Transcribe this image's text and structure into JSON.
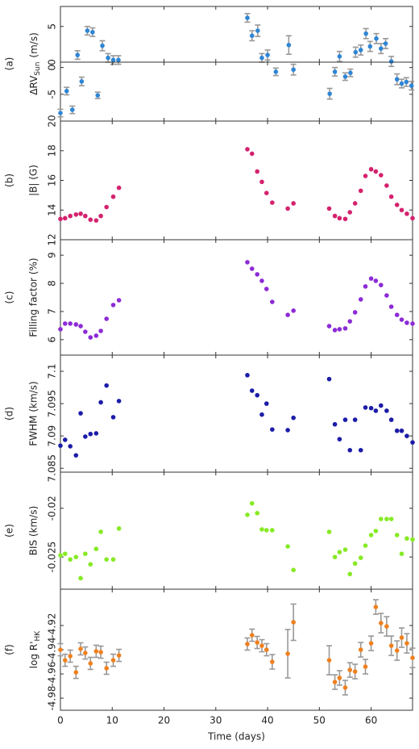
{
  "chart_data": [
    {
      "type": "errorbar",
      "panel": "(a)",
      "ylabel": {
        "text": "ΔRV",
        "sub": "Sun",
        "unit": "(m/s)"
      },
      "color": "#2e86d6",
      "x": [
        3.3,
        5.2,
        6.2,
        8.1,
        9.2,
        10.2,
        11.2,
        36.1,
        37,
        38.1,
        38.9,
        40,
        44.1,
        53.9,
        57,
        58,
        59,
        59.8,
        61,
        61.9,
        62.8,
        63.9
      ],
      "values": [
        1.0,
        4.4,
        4.2,
        2.3,
        0.6,
        0.3,
        0.3,
        6.2,
        3.7,
        4.4,
        0.6,
        1.0,
        2.4,
        0.8,
        1.4,
        1.7,
        4.0,
        2.2,
        3.3,
        1.9,
        2.6,
        0.1
      ],
      "errors": [
        0.6,
        0.6,
        0.6,
        0.7,
        0.6,
        0.6,
        0.6,
        0.6,
        0.7,
        0.8,
        0.6,
        0.7,
        1.3,
        0.7,
        0.7,
        0.7,
        0.7,
        0.7,
        0.7,
        0.7,
        0.7,
        0.7
      ],
      "xlim": [
        0,
        68
      ],
      "xticks": [
        0,
        10,
        20,
        30,
        40,
        50,
        60
      ],
      "ylim": [
        0,
        7.8
      ],
      "yticks": [
        0,
        5
      ]
    },
    {
      "type": "errorbar",
      "color": "#2e86d6",
      "x": [
        0,
        1.2,
        2.3,
        4.1,
        7.2,
        41.6,
        45,
        52,
        53,
        55,
        56,
        65,
        65.9,
        66.8,
        67.8
      ],
      "values": [
        -8.5,
        -4.4,
        -7.9,
        -2.6,
        -5.2,
        -0.8,
        -0.4,
        -4.9,
        -0.8,
        -1.7,
        -1.0,
        -2.2,
        -3.0,
        -2.7,
        -3.4
      ],
      "errors": [
        0.7,
        0.7,
        0.7,
        0.8,
        0.6,
        0.7,
        1.0,
        1.0,
        0.8,
        0.7,
        0.7,
        1.0,
        0.8,
        0.8,
        0.8
      ],
      "xlim": [
        0,
        68
      ],
      "xticks": [
        0,
        10,
        20,
        30,
        40,
        50,
        60
      ],
      "ylim": [
        -10,
        1
      ],
      "yticks": [
        -5,
        0
      ]
    },
    {
      "type": "scatter",
      "panel": "(b)",
      "ylabel": "|B| (G)",
      "color": "#d4226e",
      "x": [
        0,
        0.9,
        1.9,
        3,
        3.9,
        4.8,
        5.8,
        6.9,
        7.8,
        8.9,
        10.2,
        11.3,
        36.1,
        37,
        38,
        38.9,
        39.8,
        40.9,
        43.9,
        45,
        51.9,
        53,
        53.9,
        55,
        55.9,
        56.9,
        58,
        58.9,
        60,
        60.9,
        61.9,
        63,
        63.9,
        65,
        65.9,
        66.9,
        68
      ],
      "values": [
        13.4,
        13.45,
        13.6,
        13.7,
        13.75,
        13.6,
        13.35,
        13.3,
        13.6,
        14.2,
        14.9,
        15.5,
        18.1,
        17.8,
        16.6,
        15.9,
        15.15,
        14.5,
        14.1,
        14.45,
        14.1,
        13.6,
        13.45,
        13.4,
        13.85,
        14.45,
        15.3,
        16.3,
        16.75,
        16.6,
        16.35,
        15.65,
        14.9,
        14.35,
        14.0,
        13.75,
        13.45
      ],
      "xlim": [
        0,
        68
      ],
      "xticks": [
        0,
        10,
        20,
        30,
        40,
        50,
        60
      ],
      "ylim": [
        12,
        20
      ],
      "yticks": [
        12,
        14,
        16,
        18,
        20
      ]
    },
    {
      "type": "scatter",
      "panel": "(c)",
      "ylabel": "Filling factor (%)",
      "color": "#8c2bd6",
      "x": [
        0,
        0.9,
        1.9,
        3,
        3.9,
        4.8,
        5.8,
        6.9,
        7.8,
        8.9,
        10.2,
        11.3,
        36.1,
        37,
        38,
        38.9,
        39.8,
        40.9,
        43.9,
        45,
        51.9,
        53,
        53.9,
        55,
        55.9,
        56.9,
        58,
        58.9,
        60,
        60.9,
        61.9,
        63,
        63.9,
        65,
        65.9,
        66.9,
        68
      ],
      "values": [
        6.37,
        6.57,
        6.57,
        6.54,
        6.48,
        6.28,
        6.08,
        6.14,
        6.31,
        6.74,
        7.23,
        7.4,
        8.75,
        8.52,
        8.32,
        8.09,
        7.8,
        7.34,
        6.88,
        7.03,
        6.48,
        6.34,
        6.37,
        6.4,
        6.65,
        6.97,
        7.43,
        7.89,
        8.17,
        8.09,
        7.94,
        7.57,
        7.17,
        6.88,
        6.71,
        6.6,
        6.57
      ],
      "xlim": [
        0,
        68
      ],
      "xticks": [
        0,
        10,
        20,
        30,
        40,
        50,
        60
      ],
      "ylim": [
        5.45,
        9.55
      ],
      "yticks": [
        6,
        7,
        8,
        9
      ]
    },
    {
      "type": "scatter",
      "panel": "(d)",
      "ylabel": "FWHM (km/s)",
      "color": "#1c1ca8",
      "x": [
        0,
        0.9,
        1.9,
        3,
        3.9,
        4.8,
        5.8,
        6.9,
        7.8,
        8.9,
        10.2,
        11.3,
        36.1,
        37,
        38,
        38.9,
        39.8,
        40.9,
        43.9,
        45,
        51.9,
        53,
        53.9,
        55,
        55.9,
        56.9,
        58,
        58.9,
        60,
        60.9,
        61.9,
        63,
        63.9,
        65,
        65.9,
        66.9,
        68
      ],
      "values": [
        7.0885,
        7.0894,
        7.0884,
        7.087,
        7.0935,
        7.0899,
        7.0903,
        7.0904,
        7.0952,
        7.0978,
        7.0929,
        7.0954,
        7.0994,
        7.097,
        7.0963,
        7.0933,
        7.095,
        7.091,
        7.0909,
        7.0928,
        7.0988,
        7.0918,
        7.0895,
        7.0925,
        7.0878,
        7.0925,
        7.0878,
        7.0944,
        7.0943,
        7.0939,
        7.0947,
        7.0939,
        7.0925,
        7.0908,
        7.0908,
        7.09,
        7.089
      ],
      "xlim": [
        0,
        68
      ],
      "xticks": [
        0,
        10,
        20,
        30,
        40,
        50,
        60
      ],
      "ylim": [
        7.0844,
        7.1025
      ],
      "yticks": [
        7.085,
        7.09,
        7.095,
        7.1
      ]
    },
    {
      "type": "scatter",
      "panel": "(e)",
      "ylabel": "BIS (km/s)",
      "color": "#86ea24",
      "x": [
        0,
        0.9,
        1.9,
        3,
        3.9,
        4.8,
        5.8,
        6.9,
        7.8,
        8.9,
        10.2,
        11.3,
        36.1,
        37,
        38,
        38.9,
        39.8,
        40.9,
        43.9,
        45,
        51.9,
        53,
        53.9,
        55,
        55.9,
        56.9,
        58,
        58.9,
        60,
        60.9,
        61.9,
        63,
        63.9,
        65,
        65.9,
        66.9,
        68
      ],
      "values": [
        -0.02483,
        -0.02467,
        -0.02525,
        -0.025,
        -0.02717,
        -0.02467,
        -0.02575,
        -0.02417,
        -0.02242,
        -0.02525,
        -0.02525,
        -0.02208,
        -0.02067,
        -0.0195,
        -0.0205,
        -0.02217,
        -0.02225,
        -0.02225,
        -0.02392,
        -0.02633,
        -0.02242,
        -0.025,
        -0.0245,
        -0.02425,
        -0.02675,
        -0.02567,
        -0.02508,
        -0.02383,
        -0.02275,
        -0.02233,
        -0.0211,
        -0.0211,
        -0.0211,
        -0.02275,
        -0.02467,
        -0.0231,
        -0.0232
      ],
      "xlim": [
        0,
        68
      ],
      "xticks": [
        0,
        10,
        20,
        30,
        40,
        50,
        60
      ],
      "ylim": [
        -0.0283,
        -0.0163
      ],
      "yticks": [
        -0.025,
        -0.02
      ]
    },
    {
      "type": "errorbar",
      "panel": "(f)",
      "ylabel": {
        "text": "log R'",
        "sub": "HK"
      },
      "xlabel": "Time (days)",
      "color": "#f0801e",
      "x": [
        0,
        0.9,
        1.9,
        3,
        3.9,
        4.8,
        5.8,
        6.9,
        7.8,
        8.9,
        10.2,
        11.3,
        36.1,
        37,
        38,
        38.9,
        39.8,
        40.9,
        43.9,
        45,
        51.9,
        53,
        53.9,
        55,
        55.9,
        56.9,
        58,
        58.9,
        60,
        60.9,
        61.9,
        63,
        63.9,
        65,
        65.9,
        66.9,
        68
      ],
      "values": [
        -4.94,
        -4.9487,
        -4.9453,
        -4.9587,
        -4.9393,
        -4.9427,
        -4.9513,
        -4.9413,
        -4.942,
        -4.9553,
        -4.9487,
        -4.9447,
        -4.9353,
        -4.928,
        -4.934,
        -4.9367,
        -4.94,
        -4.95,
        -4.9433,
        -4.9173,
        -4.9487,
        -4.9667,
        -4.9633,
        -4.9713,
        -4.9567,
        -4.958,
        -4.94,
        -4.954,
        -4.9347,
        -4.9047,
        -4.918,
        -4.9207,
        -4.9367,
        -4.9407,
        -4.93,
        -4.9347,
        -4.9467
      ],
      "errors": [
        0.005,
        0.005,
        0.005,
        0.005,
        0.005,
        0.005,
        0.005,
        0.005,
        0.005,
        0.005,
        0.005,
        0.005,
        0.005,
        0.005,
        0.005,
        0.005,
        0.005,
        0.006,
        0.02,
        0.015,
        0.012,
        0.006,
        0.006,
        0.006,
        0.006,
        0.006,
        0.006,
        0.006,
        0.006,
        0.006,
        0.008,
        0.008,
        0.008,
        0.008,
        0.008,
        0.008,
        0.008
      ],
      "xlim": [
        0,
        68
      ],
      "xticks": [
        0,
        10,
        20,
        30,
        40,
        50,
        60
      ],
      "ylim": [
        -4.99,
        -4.89
      ],
      "yticks": [
        -4.98,
        -4.96,
        -4.94,
        -4.92
      ]
    }
  ]
}
